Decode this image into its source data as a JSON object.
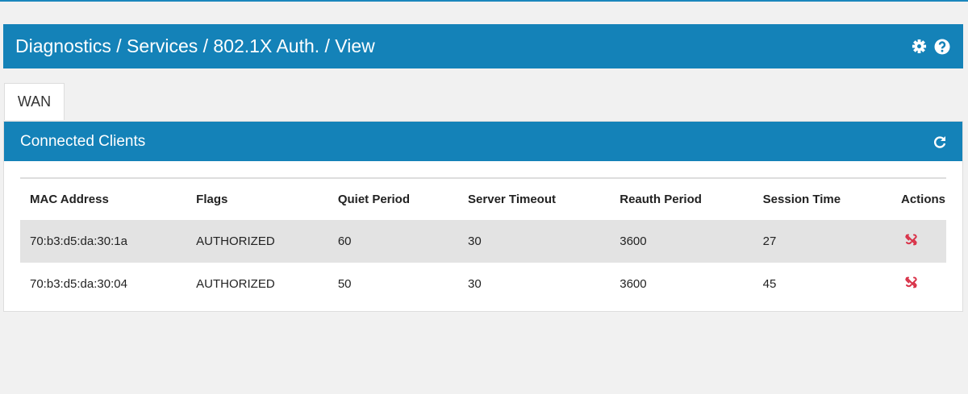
{
  "header": {
    "breadcrumb": "Diagnostics / Services / 802.1X Auth. / View",
    "icons": [
      "gear-icon",
      "question-circle-icon"
    ]
  },
  "tabs": [
    {
      "label": "WAN",
      "active": true
    }
  ],
  "panel": {
    "title": "Connected Clients",
    "refresh_icon": "refresh-icon"
  },
  "table": {
    "columns": [
      "MAC Address",
      "Flags",
      "Quiet Period",
      "Server Timeout",
      "Reauth Period",
      "Session Time",
      "Actions"
    ],
    "rows": [
      [
        "70:b3:d5:da:30:1a",
        "AUTHORIZED",
        "60",
        "30",
        "3600",
        "27"
      ],
      [
        "70:b3:d5:da:30:04",
        "AUTHORIZED",
        "50",
        "30",
        "3600",
        "45"
      ]
    ],
    "action_icon": "unlink-icon",
    "action_color": "#d9344a"
  }
}
